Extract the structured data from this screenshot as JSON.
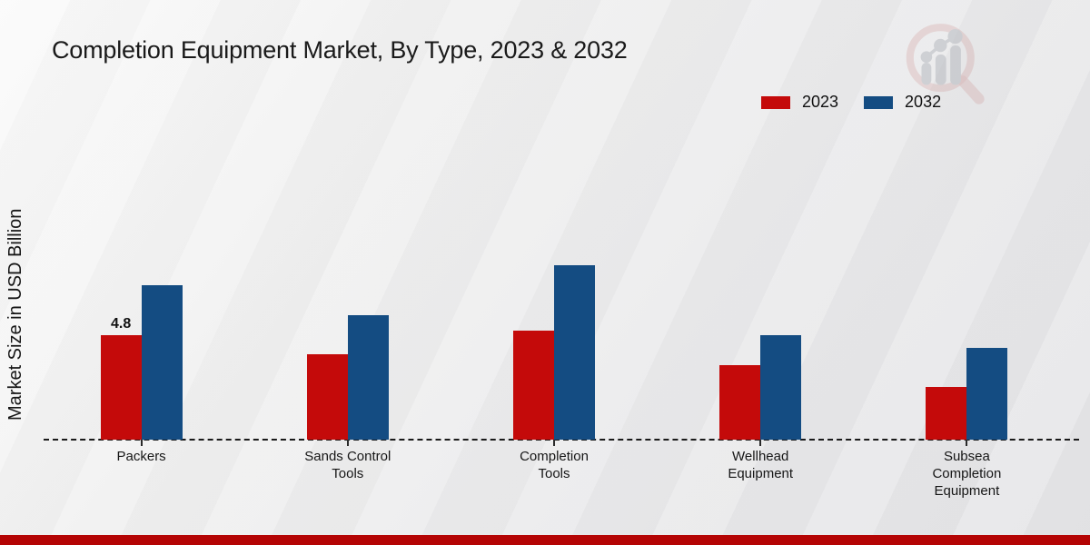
{
  "page": {
    "title": "Completion Equipment Market, By Type, 2023 & 2032",
    "ylabel": "Market Size in USD Billion",
    "footer_color": "#b40404"
  },
  "legend": {
    "items": [
      {
        "label": "2023",
        "color": "#c40a0a"
      },
      {
        "label": "2032",
        "color": "#144c82"
      }
    ]
  },
  "chart_data": {
    "type": "bar",
    "title": "Completion Equipment Market, By Type, 2023 & 2032",
    "xlabel": "",
    "ylabel": "Market Size in USD Billion",
    "categories": [
      "Packers",
      "Sands Control Tools",
      "Completion Tools",
      "Wellhead Equipment",
      "Subsea Completion Equipment"
    ],
    "series": [
      {
        "name": "2023",
        "color": "#c40a0a",
        "values": [
          4.8,
          3.9,
          5.0,
          3.4,
          2.4
        ]
      },
      {
        "name": "2032",
        "color": "#144c82",
        "values": [
          7.1,
          5.7,
          8.0,
          4.8,
          4.2
        ]
      }
    ],
    "ylim": [
      0,
      10
    ],
    "grid": false,
    "axis_line_style": "dashed",
    "legend_position": "top-right",
    "annotations": [
      {
        "series_index": 0,
        "category_index": 0,
        "text": "4.8"
      }
    ]
  },
  "watermark": {
    "name": "magnifier-growth-chart-logo"
  }
}
